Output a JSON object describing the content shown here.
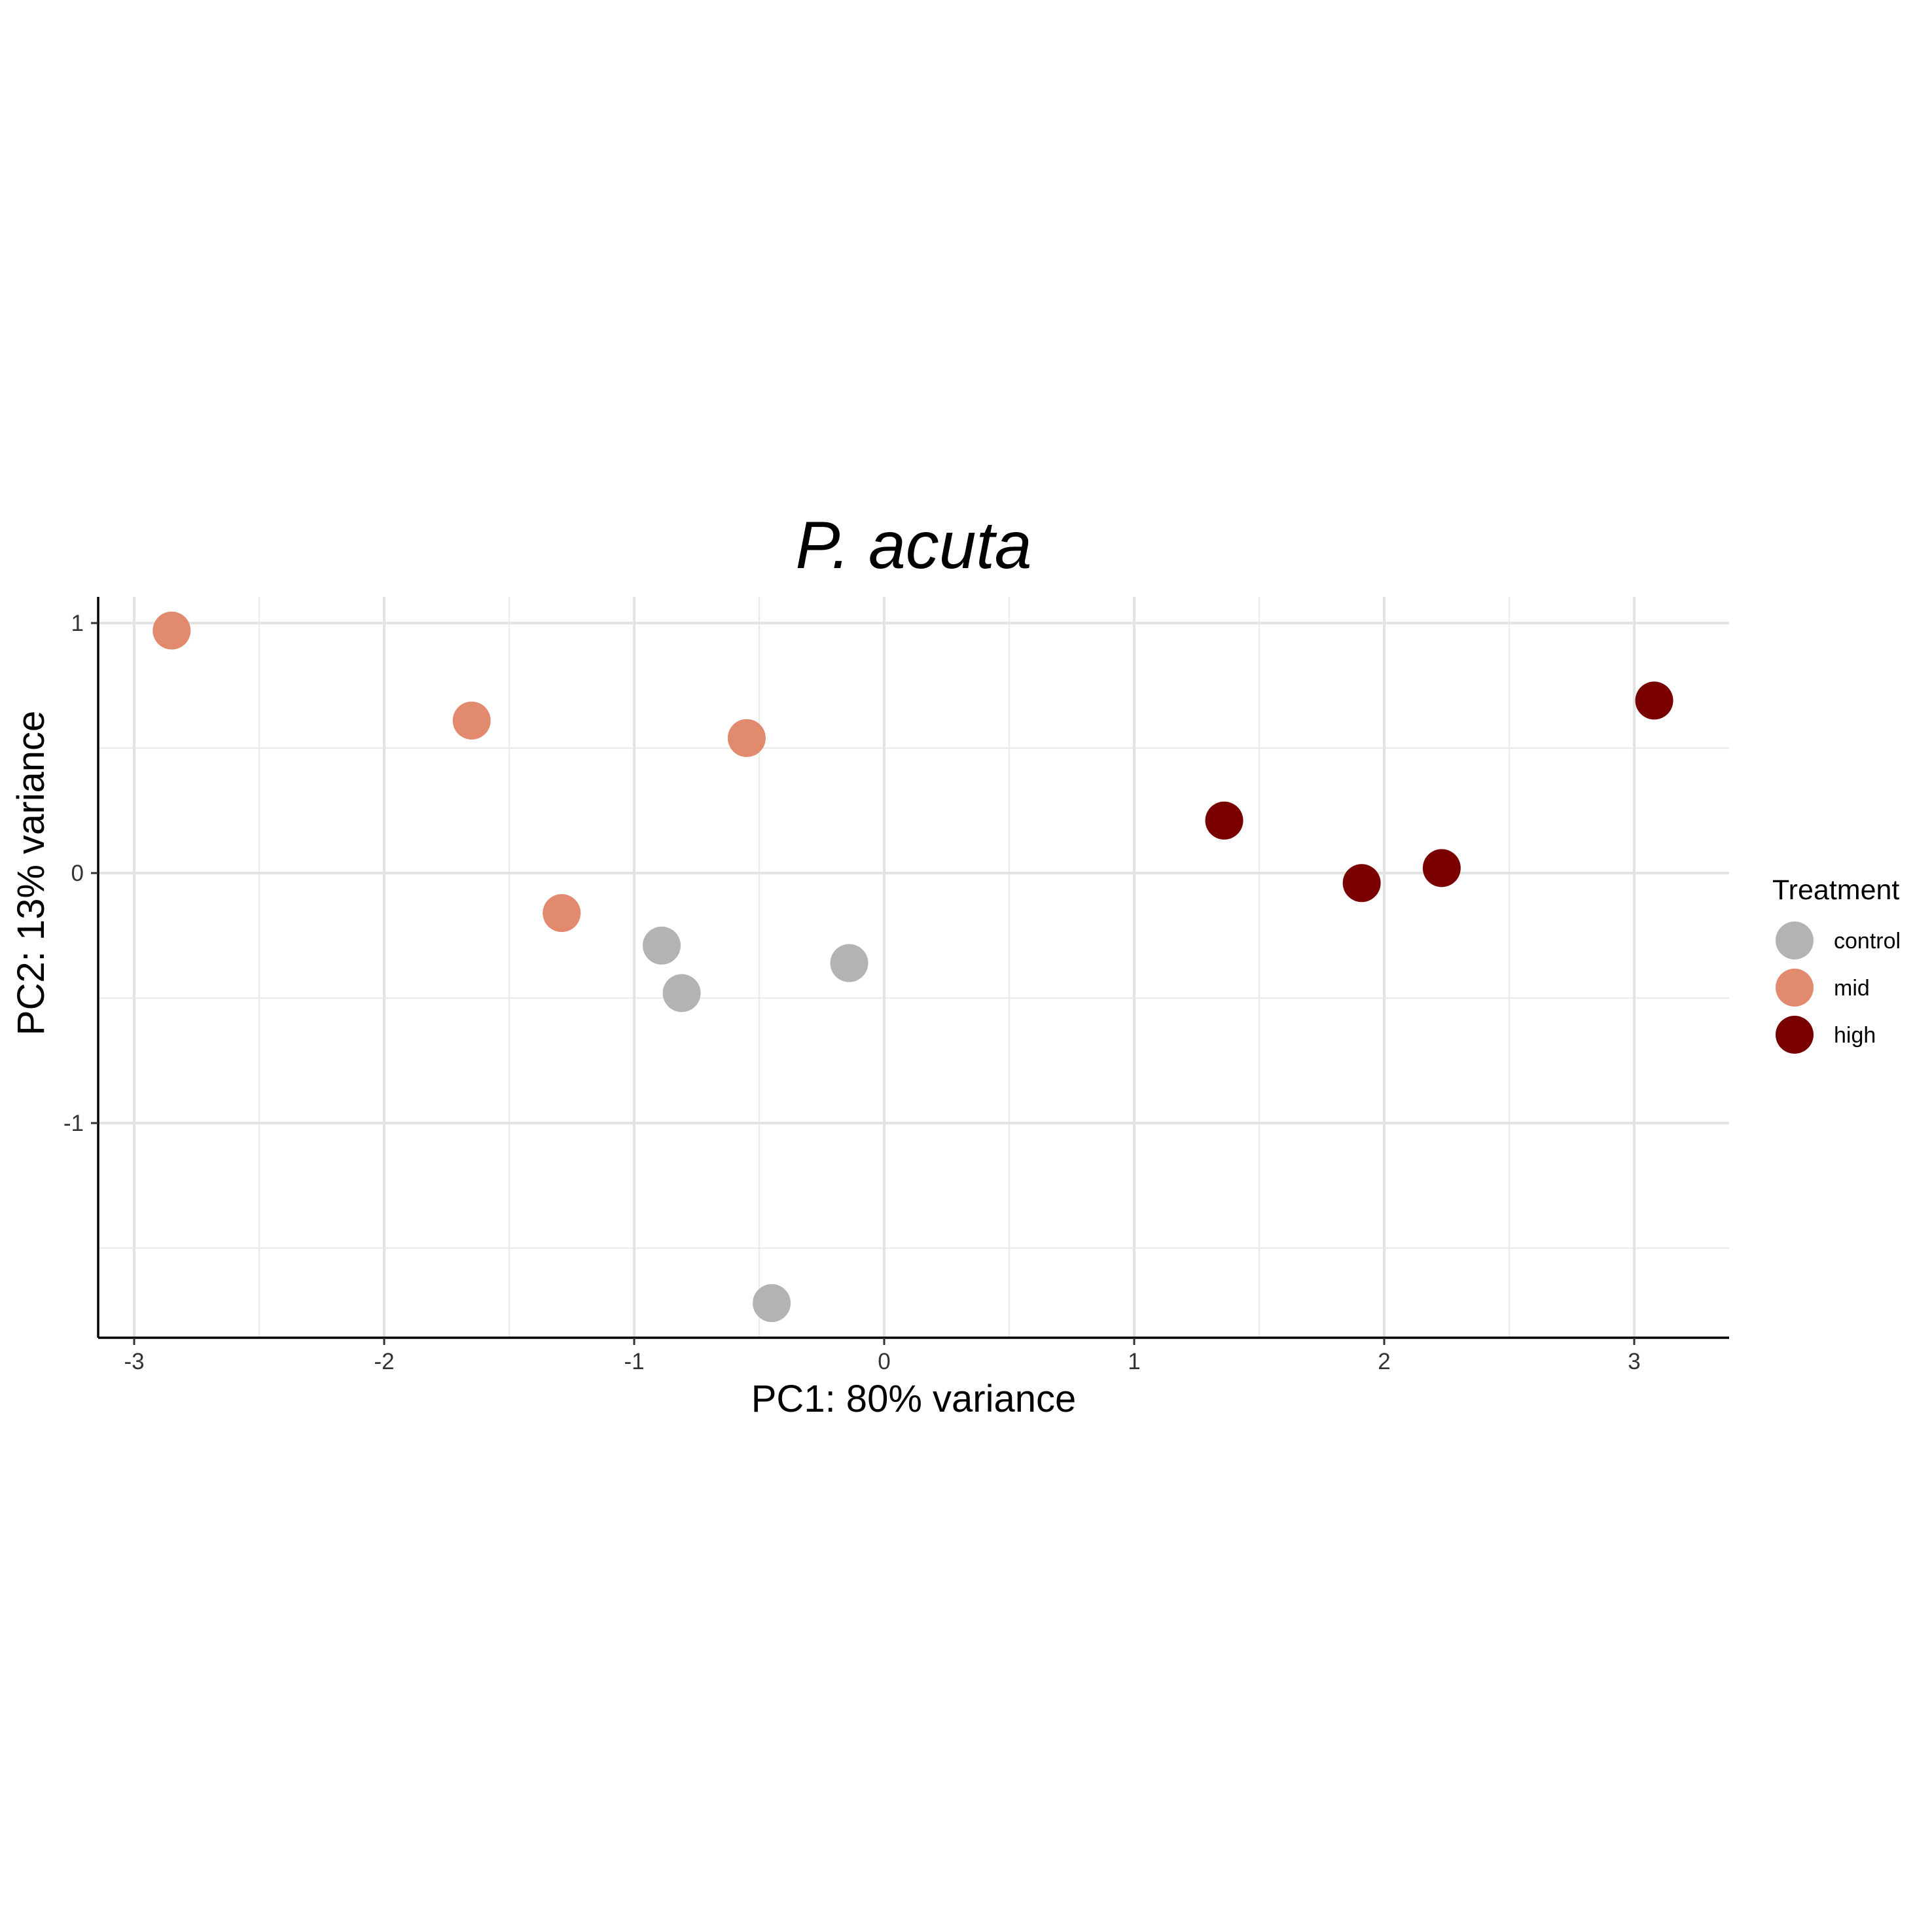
{
  "chart_data": {
    "type": "scatter",
    "title": "P. acuta",
    "xlabel": "PC1: 80% variance",
    "ylabel": "PC2: 13% variance",
    "xlim": [
      -3.15,
      3.35
    ],
    "ylim": [
      -1.85,
      1.1
    ],
    "x_ticks": [
      -3,
      -2,
      -1,
      0,
      1,
      2,
      3
    ],
    "x_tick_labels": [
      "-3",
      "-2",
      "-1",
      "0",
      "1",
      "2",
      "3"
    ],
    "y_ticks": [
      1,
      0,
      -1
    ],
    "y_tick_labels": [
      "1",
      "0",
      "-1"
    ],
    "grid": true,
    "legend": {
      "title": "Treatment",
      "position": "right"
    },
    "series": [
      {
        "name": "control",
        "color": "#b3b3b3",
        "points": [
          [
            -0.89,
            -0.29
          ],
          [
            -0.81,
            -0.48
          ],
          [
            -0.14,
            -0.36
          ],
          [
            -0.45,
            -1.72
          ]
        ]
      },
      {
        "name": "mid",
        "color": "#e28a6e",
        "points": [
          [
            -2.85,
            0.97
          ],
          [
            -1.65,
            0.61
          ],
          [
            -0.55,
            0.54
          ],
          [
            -1.29,
            -0.16
          ]
        ]
      },
      {
        "name": "high",
        "color": "#7a0000",
        "points": [
          [
            1.36,
            0.21
          ],
          [
            1.91,
            -0.04
          ],
          [
            2.23,
            0.02
          ],
          [
            3.08,
            0.69
          ]
        ]
      }
    ]
  }
}
